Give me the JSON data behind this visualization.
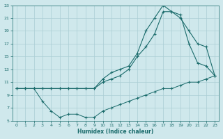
{
  "xlabel": "Humidex (Indice chaleur)",
  "bg_color": "#cfe8ec",
  "grid_color": "#aacdd4",
  "line_color": "#1a6b6b",
  "xlim": [
    -0.5,
    23.5
  ],
  "ylim": [
    5,
    23
  ],
  "xticks": [
    0,
    1,
    2,
    3,
    4,
    5,
    6,
    7,
    8,
    9,
    10,
    11,
    12,
    13,
    14,
    15,
    16,
    17,
    18,
    19,
    20,
    21,
    22,
    23
  ],
  "yticks": [
    5,
    7,
    9,
    11,
    13,
    15,
    17,
    19,
    21,
    23
  ],
  "series_top_x": [
    0,
    1,
    2,
    3,
    4,
    5,
    6,
    7,
    8,
    9,
    10,
    11,
    12,
    13,
    14,
    15,
    16,
    17,
    18,
    19,
    20,
    21,
    22,
    23
  ],
  "series_top_y": [
    10,
    10,
    10,
    10,
    10,
    10,
    10,
    10,
    10,
    10,
    11.5,
    12.5,
    13,
    13.5,
    15.5,
    19,
    21,
    23,
    22,
    21.5,
    17,
    14,
    13.5,
    12
  ],
  "series_mid_x": [
    0,
    1,
    2,
    3,
    4,
    5,
    6,
    7,
    8,
    9,
    10,
    11,
    12,
    13,
    14,
    15,
    16,
    17,
    18,
    19,
    20,
    21,
    22,
    23
  ],
  "series_mid_y": [
    10,
    10,
    10,
    10,
    10,
    10,
    10,
    10,
    10,
    10,
    11,
    11.5,
    12,
    13,
    15,
    16.5,
    18.5,
    22,
    22,
    21,
    19,
    17,
    16.5,
    12
  ],
  "series_bot_x": [
    0,
    1,
    2,
    3,
    4,
    5,
    6,
    7,
    8,
    9,
    10,
    11,
    12,
    13,
    14,
    15,
    16,
    17,
    18,
    19,
    20,
    21,
    22,
    23
  ],
  "series_bot_y": [
    10,
    10,
    10,
    8,
    6.5,
    5.5,
    6,
    6,
    5.5,
    5.5,
    6.5,
    7,
    7.5,
    8,
    8.5,
    9,
    9.5,
    10,
    10,
    10.5,
    11,
    11,
    11.5,
    12
  ]
}
